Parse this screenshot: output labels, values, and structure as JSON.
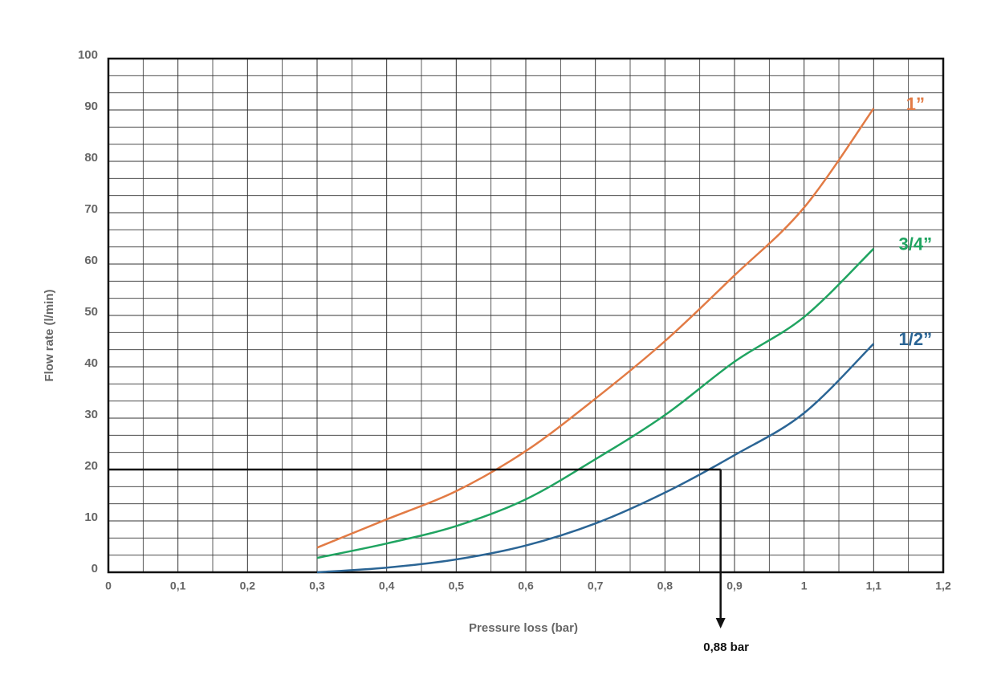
{
  "chart_data": {
    "type": "line",
    "x_label": "Pressure loss (bar)",
    "y_label": "Flow rate (l/min)",
    "x": [
      0.3,
      0.4,
      0.5,
      0.6,
      0.7,
      0.8,
      0.9,
      1.0,
      1.1
    ],
    "series": [
      {
        "name": "1”",
        "color": "#e27b45",
        "values": [
          4.8,
          10.3,
          15.8,
          23.6,
          33.8,
          45,
          57.8,
          71,
          90.3
        ]
      },
      {
        "name": "3/4”",
        "color": "#20a461",
        "values": [
          2.8,
          5.6,
          9,
          14.2,
          22,
          30.6,
          41,
          49.7,
          63
        ]
      },
      {
        "name": "1/2”",
        "color": "#2b6595",
        "values": [
          0,
          0.9,
          2.5,
          5.2,
          9.5,
          15.5,
          22.8,
          31,
          44.5
        ]
      }
    ],
    "xlim": [
      0,
      1.2
    ],
    "ylim": [
      0,
      100
    ],
    "xticks": [
      0,
      {
        "value": 0.1,
        "label": "0,1"
      },
      {
        "value": 0.2,
        "label": "0,2"
      },
      {
        "value": 0.3,
        "label": "0,3"
      },
      {
        "value": 0.4,
        "label": "0,4"
      },
      {
        "value": 0.5,
        "label": "0,5"
      },
      {
        "value": 0.6,
        "label": "0,6"
      },
      {
        "value": 0.7,
        "label": "0,7"
      },
      {
        "value": 0.8,
        "label": "0,8"
      },
      {
        "value": 0.9,
        "label": "0,9"
      },
      1,
      {
        "value": 1.1,
        "label": "1,1"
      },
      {
        "value": 1.2,
        "label": "1,2"
      }
    ],
    "yticks": [
      0,
      10,
      20,
      30,
      40,
      50,
      60,
      70,
      80,
      90,
      100
    ],
    "grid": true,
    "annotation": {
      "x": 0.88,
      "y": 20,
      "label": "0,88 bar"
    }
  }
}
